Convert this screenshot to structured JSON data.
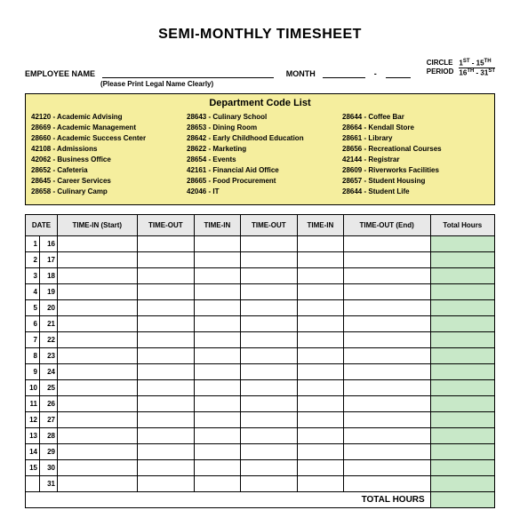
{
  "title": "SEMI-MONTHLY TIMESHEET",
  "labels": {
    "employee": "EMPLOYEE NAME",
    "month": "MONTH",
    "circle": "CIRCLE",
    "period": "PERIOD",
    "legal": "(Please Print Legal Name Clearly)",
    "period1": "1",
    "period1sup": "ST",
    "period1to": " - 15",
    "period1tosup": "TH",
    "period2": "16",
    "period2sup": "TH",
    "period2to": " - 31",
    "period2tosup": "ST"
  },
  "dept": {
    "title": "Department Code List",
    "col1": [
      "42120 - Academic Advising",
      "28669 - Academic Management",
      "28660 - Academic Success Center",
      "42108 - Admissions",
      "42062 - Business Office",
      "28652 - Cafeteria",
      "28645 - Career Services",
      "28658 - Culinary Camp"
    ],
    "col2": [
      "28643 - Culinary School",
      "28653 - Dining Room",
      "28642 - Early Childhood Education",
      "28622 - Marketing",
      "28654 - Events",
      "42161 - Financial Aid Office",
      "28665 - Food Procurement",
      "42046 - IT"
    ],
    "col3": [
      "28644 - Coffee Bar",
      "28664 - Kendall Store",
      "28661 - Library",
      "28656 - Recreational Courses",
      "42144 - Registrar",
      "28609 - Riverworks Facilities",
      "28657 - Student Housing",
      "28644 - Student Life"
    ]
  },
  "table": {
    "headers": {
      "date": "DATE",
      "tin_start": "TIME-IN (Start)",
      "tout": "TIME-OUT",
      "tin": "TIME-IN",
      "tout_end": "TIME-OUT (End)",
      "total": "Total Hours"
    },
    "rows": [
      {
        "n": "1",
        "d": "16"
      },
      {
        "n": "2",
        "d": "17"
      },
      {
        "n": "3",
        "d": "18"
      },
      {
        "n": "4",
        "d": "19"
      },
      {
        "n": "5",
        "d": "20"
      },
      {
        "n": "6",
        "d": "21"
      },
      {
        "n": "7",
        "d": "22"
      },
      {
        "n": "8",
        "d": "23"
      },
      {
        "n": "9",
        "d": "24"
      },
      {
        "n": "10",
        "d": "25"
      },
      {
        "n": "11",
        "d": "26"
      },
      {
        "n": "12",
        "d": "27"
      },
      {
        "n": "13",
        "d": "28"
      },
      {
        "n": "14",
        "d": "29"
      },
      {
        "n": "15",
        "d": "30"
      },
      {
        "n": "",
        "d": "31"
      }
    ],
    "total_label": "TOTAL HOURS"
  },
  "colors": {
    "dept_bg": "#f5ee9e",
    "header_bg": "#e8e8e8",
    "total_bg": "#c8e8c8"
  }
}
